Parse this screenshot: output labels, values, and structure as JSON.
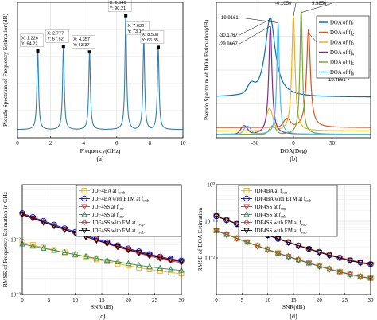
{
  "chart_data": [
    {
      "panel": "a",
      "caption": "(a)",
      "type": "line",
      "xlabel": "Frequency(GHz)",
      "ylabel": "Pseudo Spectrum of Frequency Estimation(dB)",
      "xlim": [
        0,
        10
      ],
      "ylim": [
        0,
        100
      ],
      "xticks": [
        "0",
        "2",
        "4",
        "6",
        "8",
        "10"
      ],
      "yticks": [],
      "grid": true,
      "color": "#2f7fb5",
      "peaks": [
        {
          "x": 1.226,
          "y": 64.22,
          "xlabel": "X: 1.226",
          "ylabel": "Y: 64.22"
        },
        {
          "x": 2.777,
          "y": 67.52,
          "xlabel": "X: 2.777",
          "ylabel": "Y: 67.52"
        },
        {
          "x": 4.357,
          "y": 63.37,
          "xlabel": "X: 4.357",
          "ylabel": "Y: 63.37"
        },
        {
          "x": 6.546,
          "y": 90.21,
          "xlabel": "X: 6.546",
          "ylabel": "Y: 90.21"
        },
        {
          "x": 7.636,
          "y": 73.17,
          "xlabel": "X: 7.636",
          "ylabel": "Y: 73.17"
        },
        {
          "x": 8.508,
          "y": 66.85,
          "xlabel": "X: 8.508",
          "ylabel": "Y: 66.85"
        }
      ],
      "baseline": 6
    },
    {
      "panel": "b",
      "caption": "(b)",
      "type": "line",
      "xlabel": "DOA(Deg)",
      "ylabel": "Pseudo Spectrum of DOA Estimation(dB)",
      "xlim": [
        -100,
        100
      ],
      "ylim": [
        0,
        40
      ],
      "xticks": [
        "-50",
        "0",
        "50"
      ],
      "yticks": [],
      "grid": true,
      "legend_position": "top-right",
      "series": [
        {
          "name": "DOA of f1",
          "sub": "1",
          "color": "#0072bd",
          "peak_x": -30.1767,
          "peak_y": 35.5,
          "base": 12,
          "width": 8
        },
        {
          "name": "DOA of f2",
          "sub": "2",
          "color": "#d95319",
          "peak_x": 19.4561,
          "peak_y": 32,
          "base": 3,
          "width": 3
        },
        {
          "name": "DOA of f3",
          "sub": "3",
          "color": "#edb120",
          "peak_x": -0.105,
          "peak_y": 36,
          "base": 2,
          "width": 2.5
        },
        {
          "name": "DOA of f4",
          "sub": "4",
          "color": "#7e2f8e",
          "peak_x": -29.9667,
          "peak_y": 33,
          "base": 1,
          "width": 2.5
        },
        {
          "name": "DOA of f5",
          "sub": "5",
          "color": "#77ac30",
          "peak_x": 9.9856,
          "peak_y": 37.5,
          "base": 1,
          "width": 2
        },
        {
          "name": "DOA of f6",
          "sub": "6",
          "color": "#4dbeee",
          "peak_x": -19.9161,
          "peak_y": 34,
          "base": 1,
          "width": 2
        }
      ],
      "annotations": [
        "-19.9161",
        "-30.1767",
        "-29.9667",
        "-0.1050",
        "9.9856",
        "19.4561"
      ]
    },
    {
      "panel": "c",
      "caption": "(c)",
      "type": "line",
      "xlabel": "SNR(dB)",
      "ylabel": "RMSE of Frequency Estimation in GHz",
      "xlim": [
        0,
        30
      ],
      "ylim_log10": [
        -3,
        -1
      ],
      "xticks": [
        "0",
        "5",
        "10",
        "15",
        "20",
        "25",
        "30"
      ],
      "yticks": [
        "10⁻³",
        "10⁻²"
      ],
      "grid": true,
      "legend_position": "top-right",
      "x": [
        0,
        2,
        4,
        6,
        8,
        10,
        12,
        14,
        16,
        18,
        20,
        22,
        24,
        26,
        28,
        30
      ],
      "series": [
        {
          "name": "JDF4BA at f",
          "sub": "sub",
          "color": "#edb120",
          "marker": "square",
          "log_range": [
            -2.05,
            -2.62
          ]
        },
        {
          "name": "JDF4BA with ETM at f",
          "sub": "sub",
          "color": "#0000ff",
          "marker": "circle",
          "log_range": [
            -1.52,
            -2.38
          ]
        },
        {
          "name": "JDF4SS at f",
          "sub": "sup",
          "color": "#ff2020",
          "marker": "triangle-down",
          "log_range": [
            -1.55,
            -2.39
          ]
        },
        {
          "name": "JDF4SS at f",
          "sub": "sub",
          "color": "#2e8b57",
          "marker": "triangle-up",
          "log_range": [
            -2.08,
            -2.56
          ]
        },
        {
          "name": "JDF4SS with EM at f",
          "sub": "sup",
          "color": "#e03030",
          "marker": "diamond",
          "log_range": [
            -1.53,
            -2.42
          ]
        },
        {
          "name": "JDF4SS with EM at f",
          "sub": "sub",
          "color": "#000000",
          "marker": "triangle-down",
          "log_range": [
            -1.54,
            -2.4
          ]
        }
      ]
    },
    {
      "panel": "d",
      "caption": "(d)",
      "type": "line",
      "xlabel": "SNR(dB)",
      "ylabel": "RMSE of DOA Estimation",
      "xlim": [
        0,
        30
      ],
      "ylim_log10": [
        -3,
        0
      ],
      "xticks": [
        "0",
        "5",
        "10",
        "15",
        "20",
        "25",
        "30"
      ],
      "yticks": [
        "10⁻²",
        "10⁻¹",
        "10⁰"
      ],
      "grid": true,
      "legend_position": "top-right",
      "x": [
        0,
        2,
        4,
        6,
        8,
        10,
        12,
        14,
        16,
        18,
        20,
        22,
        24,
        26,
        28,
        30
      ],
      "series": [
        {
          "name": "JDF4BA at f",
          "sub": "sub",
          "color": "#edb120",
          "marker": "square",
          "log_range": [
            -1.25,
            -2.55
          ]
        },
        {
          "name": "JDF4BA with ETM at f",
          "sub": "sub",
          "color": "#0000ff",
          "marker": "circle",
          "log_range": [
            -0.86,
            -2.17
          ]
        },
        {
          "name": "JDF4SS at f",
          "sub": "sup",
          "color": "#ff2020",
          "marker": "triangle-down",
          "log_range": [
            -1.26,
            -2.56
          ]
        },
        {
          "name": "JDF4SS at f",
          "sub": "sub",
          "color": "#2e8b57",
          "marker": "triangle-up",
          "log_range": [
            -1.25,
            -2.55
          ]
        },
        {
          "name": "JDF4SS with EM at f",
          "sub": "sup",
          "color": "#e03030",
          "marker": "diamond",
          "log_range": [
            -0.85,
            -2.16
          ]
        },
        {
          "name": "JDF4SS with EM at f",
          "sub": "sub",
          "color": "#000000",
          "marker": "triangle-down",
          "log_range": [
            -0.86,
            -2.18
          ]
        }
      ]
    }
  ]
}
